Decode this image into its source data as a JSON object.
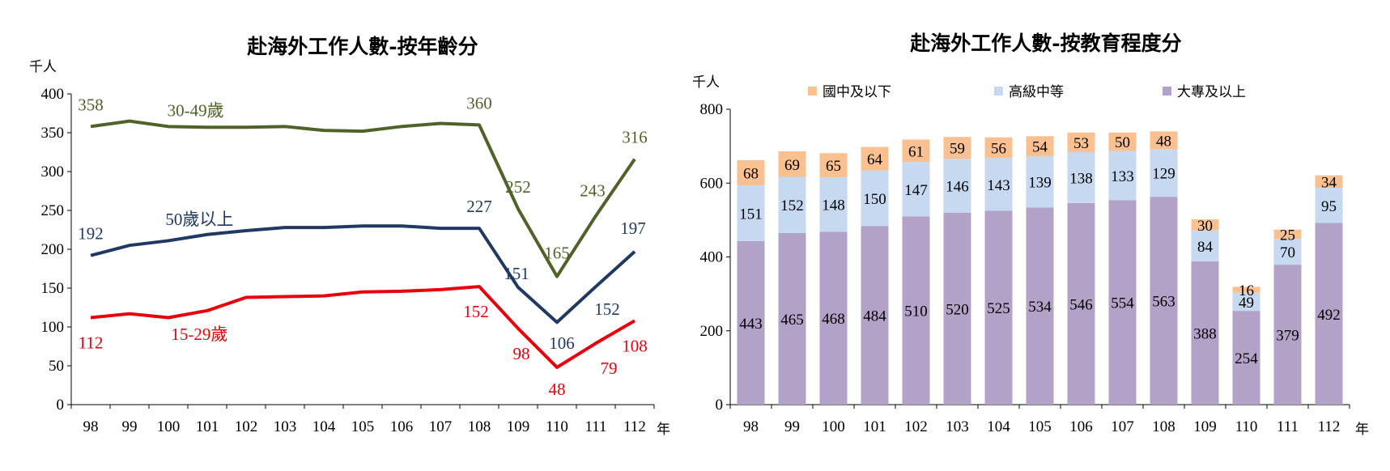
{
  "chart_data": [
    {
      "type": "line",
      "title": "赴海外工作人數-按年齡分",
      "ylabel": "千人",
      "xlabel": "年",
      "ylim": [
        0,
        400
      ],
      "yticks": [
        "0",
        "50",
        "100",
        "150",
        "200",
        "250",
        "300",
        "350",
        "400"
      ],
      "categories": [
        "98",
        "99",
        "100",
        "101",
        "102",
        "103",
        "104",
        "105",
        "106",
        "107",
        "108",
        "109",
        "110",
        "111",
        "112"
      ],
      "series": [
        {
          "name": "30-49歲",
          "color": "#4F6228",
          "values": [
            358,
            365,
            358,
            357,
            357,
            358,
            353,
            352,
            358,
            362,
            360,
            252,
            165,
            243,
            316
          ],
          "data_labels": {
            "0": "358",
            "10": "360",
            "11": "252",
            "12": "165",
            "13": "243",
            "14": "316"
          }
        },
        {
          "name": "50歲以上",
          "color": "#1F3864",
          "values": [
            192,
            205,
            211,
            219,
            224,
            228,
            228,
            230,
            230,
            227,
            227,
            151,
            106,
            152,
            197
          ],
          "data_labels": {
            "0": "192",
            "10": "227",
            "11": "151",
            "12": "106",
            "13": "152",
            "14": "197"
          }
        },
        {
          "name": "15-29歲",
          "color": "#E8000B",
          "values": [
            112,
            117,
            112,
            121,
            138,
            139,
            140,
            145,
            146,
            148,
            152,
            98,
            48,
            79,
            108
          ],
          "data_labels": {
            "0": "112",
            "10": "152",
            "11": "98",
            "12": "48",
            "13": "79",
            "14": "108"
          }
        }
      ]
    },
    {
      "type": "bar",
      "stacked": true,
      "title": "赴海外工作人數-按教育程度分",
      "ylabel": "千人",
      "xlabel": "年",
      "ylim": [
        0,
        800
      ],
      "yticks": [
        "0",
        "200",
        "400",
        "600",
        "800"
      ],
      "legend_position": "top",
      "categories": [
        "98",
        "99",
        "100",
        "101",
        "102",
        "103",
        "104",
        "105",
        "106",
        "107",
        "108",
        "109",
        "110",
        "111",
        "112"
      ],
      "series": [
        {
          "name": "大專及以上",
          "color": "#B3A2C7",
          "values": [
            443,
            465,
            468,
            484,
            510,
            520,
            525,
            534,
            546,
            554,
            563,
            388,
            254,
            379,
            492
          ]
        },
        {
          "name": "高級中等",
          "color": "#C6D9F1",
          "values": [
            151,
            152,
            148,
            150,
            147,
            146,
            143,
            139,
            138,
            133,
            129,
            84,
            49,
            70,
            95
          ]
        },
        {
          "name": "國中及以下",
          "color": "#FAC090",
          "values": [
            68,
            69,
            65,
            64,
            61,
            59,
            56,
            54,
            53,
            50,
            48,
            30,
            16,
            25,
            34
          ]
        }
      ],
      "legend_order": [
        2,
        1,
        0
      ]
    }
  ]
}
